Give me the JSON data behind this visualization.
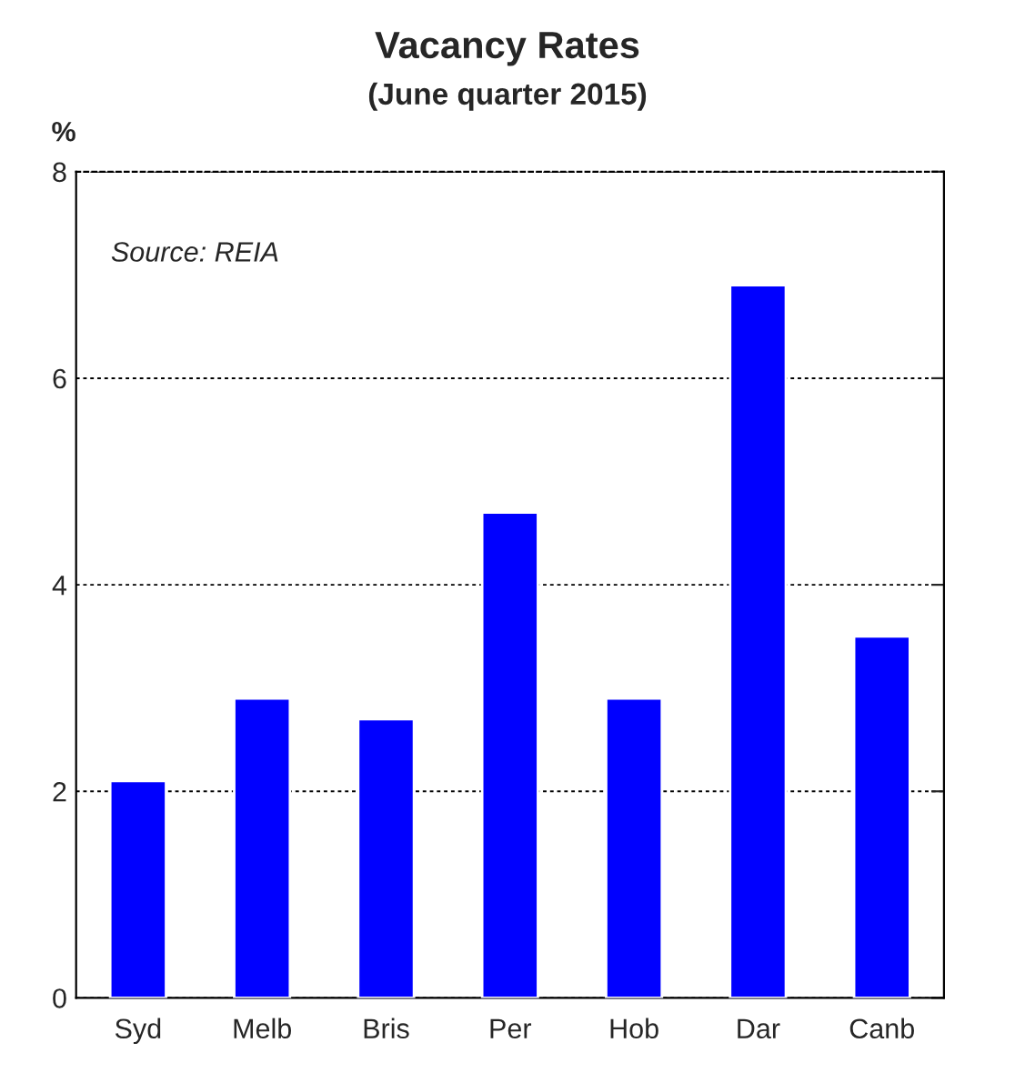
{
  "chart_data": {
    "type": "bar",
    "title": "Vacancy Rates",
    "subtitle": "(June quarter 2015)",
    "ylabel": "%",
    "categories": [
      "Syd",
      "Melb",
      "Bris",
      "Per",
      "Hob",
      "Dar",
      "Canb"
    ],
    "values": [
      2.1,
      2.9,
      2.7,
      4.7,
      2.9,
      6.9,
      3.5
    ],
    "color": "#0000ff",
    "ylim": [
      0,
      8
    ],
    "yticks": [
      0,
      2,
      4,
      6,
      8
    ],
    "grid": "y",
    "annotations": [
      "Source: REIA"
    ]
  }
}
